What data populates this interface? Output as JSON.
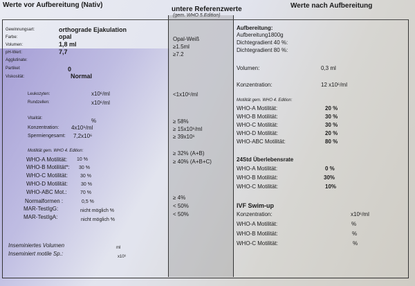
{
  "headers": {
    "left": "Werte vor Aufbereitung (Nativ)",
    "middle": "untere Referenzwerte",
    "middle_sub": "(gem. WHO 5.Edition)",
    "right": "Werte nach Aufbereitung"
  },
  "nativ": {
    "gewinnungsart": {
      "label": "Gewinnungsart:",
      "value": "orthograde Ejakulation"
    },
    "farbe": {
      "label": "Farbe:",
      "value": "opal"
    },
    "volumen": {
      "label": "Volumen:",
      "value": "1,8 ml"
    },
    "ph": {
      "label": "pH-Wert:",
      "value": "7,7"
    },
    "agglutinate": {
      "label": "Agglutinate:"
    },
    "partikel": {
      "label": "Partikel:",
      "value": "0"
    },
    "viskositaet": {
      "label": "Viskosität:",
      "value": "Normal"
    },
    "leukozyten": {
      "label": "Leukozyten:",
      "value": "x10⁶/ml"
    },
    "rundzellen": {
      "label": "Rundzellen:",
      "value": "x10⁶/ml"
    },
    "vitalitaet": {
      "label": "Vitalität:",
      "value": "%"
    },
    "konzentration": {
      "label": "Konzentration:",
      "value": "4x10⁶/ml"
    },
    "spermiengesamt": {
      "label": "Spermiengesamt:",
      "value": "7,2x10⁶"
    },
    "motilitaet_title": "Motilität gem. WHO 4. Edition:",
    "motilitaet": [
      {
        "label": "WHO-A Motilität:",
        "value": "10 %"
      },
      {
        "label": "WHO-B Motilität*:",
        "value": "30 %"
      },
      {
        "label": "WHO-C Motilität:",
        "value": "30 %"
      },
      {
        "label": "WHO-D Motilität:",
        "value": "30 %"
      },
      {
        "label": "WHO-ABC Mot.:",
        "value": "70 %"
      }
    ],
    "normalformen": {
      "label": "Normalformen :",
      "value": "0,5 %"
    },
    "mar_g": {
      "label": "MAR-TestIgG:",
      "value": "nicht möglich %"
    },
    "mar_a": {
      "label": "MAR-TestIgA:",
      "value": "nicht möglich %"
    },
    "inseminiertes_volumen": {
      "label": "Inseminiertes Volumen",
      "value": "ml"
    },
    "inseminiert_motile": {
      "label": "Inseminiert motile Sp.:",
      "value": "x10⁶"
    }
  },
  "referenz": {
    "farbe": "Opal-Weiß",
    "volumen": "≥1.5ml",
    "ph": "≥7.2",
    "leukozyten": "<1x10⁶/ml",
    "vitalitaet": "≥ 58%",
    "konzentration": "≥ 15x10⁶/ml",
    "spermiengesamt": "≥ 39x10⁶",
    "mot_ab": "≥ 32% (A+B)",
    "mot_abc": "≥ 40% (A+B+C)",
    "normalformen": "≥ 4%",
    "mar_g": "< 50%",
    "mar_a": "< 50%"
  },
  "nach": {
    "title": "Aufbereitung:",
    "aufbereitung": "Aufbereitung1800g",
    "dichte40": "Dichtegradient 40 %:",
    "dichte80": "Dichtegradient 80 %:",
    "volumen": {
      "label": "Volumen:",
      "value": "0,3 ml"
    },
    "konzentration": {
      "label": "Konzentration:",
      "value": "12 x10⁶/ml"
    },
    "motilitaet_title": "Motilität gem. WHO 4. Edition:",
    "motilitaet": [
      {
        "label": "WHO-A Motilität:",
        "value": "20 %"
      },
      {
        "label": "WHO-B Motilität:",
        "value": "30 %"
      },
      {
        "label": "WHO-C Motilität:",
        "value": "30 %"
      },
      {
        "label": "WHO-D Motilität:",
        "value": "20 %"
      },
      {
        "label": "WHO-ABC Motilität:",
        "value": "80 %"
      }
    ],
    "ueberleben_title": "24Std Überlebensrate",
    "ueberleben": [
      {
        "label": "WHO-A Motilität:",
        "value": "0 %"
      },
      {
        "label": "WHO-B Motilität:",
        "value": "30%"
      },
      {
        "label": "WHO-C Motilität:",
        "value": "10%"
      }
    ],
    "ivf_title": "IVF Swim-up",
    "ivf_konz": {
      "label": "Konzentration:",
      "value": "x10⁶/ml"
    },
    "ivf": [
      {
        "label": "WHO-A Motilität:",
        "value": "%"
      },
      {
        "label": "WHO-B Motilität:",
        "value": "%"
      },
      {
        "label": "WHO-C Motilität:",
        "value": "%"
      }
    ]
  }
}
